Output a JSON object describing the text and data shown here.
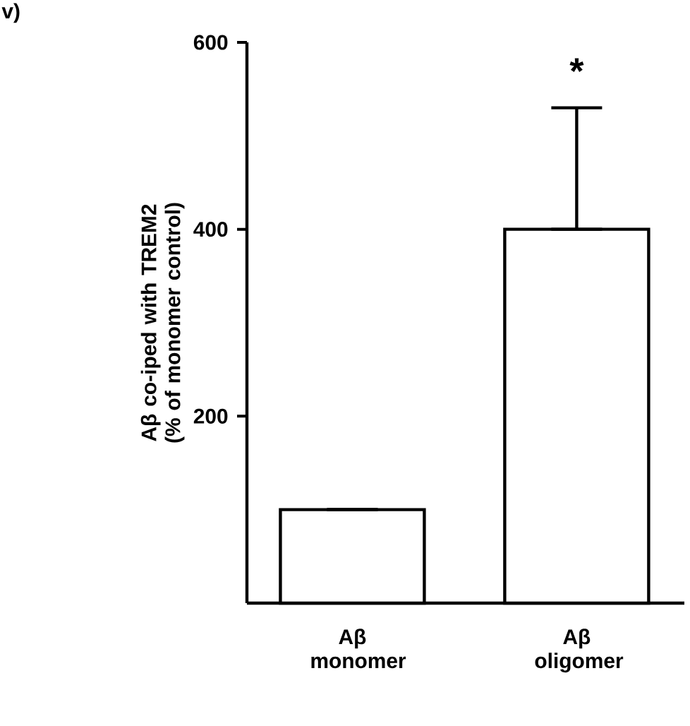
{
  "chart_data": {
    "type": "bar",
    "categories": [
      "Aβ monomer",
      "Aβ oligomer"
    ],
    "values": [
      100,
      400
    ],
    "errors": [
      null,
      [
        400,
        530
      ]
    ],
    "color": "#ffffff",
    "ylabel": "Aβ co-iped with TREM2 (% of monomer control)",
    "ylim": [
      0,
      600
    ],
    "yticks": [
      200,
      400,
      600
    ],
    "annotations": [
      "v)",
      "*"
    ],
    "grid": false
  }
}
